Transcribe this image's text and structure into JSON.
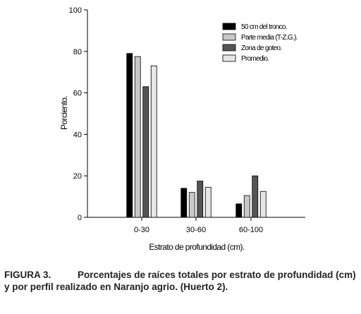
{
  "chart_data": {
    "type": "bar",
    "categories": [
      "0-30",
      "30-60",
      "60-100"
    ],
    "series": [
      {
        "name": "50 cm del tronco.",
        "color": "#000000",
        "values": [
          79,
          14,
          6.5
        ]
      },
      {
        "name": "Parte media (T-Z.G.).",
        "color": "#c8c8c8",
        "values": [
          77.5,
          12,
          10.5
        ]
      },
      {
        "name": "Zona de goteo.",
        "color": "#555555",
        "values": [
          63,
          17.5,
          20
        ]
      },
      {
        "name": "Promedio.",
        "color": "#e6e6e6",
        "values": [
          73,
          14.5,
          12.5
        ]
      }
    ],
    "xlabel": "Estrato de profundidad (cm).",
    "ylabel": "Porciento.",
    "ylim": [
      0,
      100
    ],
    "yticks": [
      0,
      20,
      40,
      60,
      80,
      100
    ],
    "grid": false,
    "legend_position": "top-right"
  },
  "caption": {
    "label": "FIGURA 3.",
    "text": "Porcentajes de raíces totales por estrato de profundidad (cm) y por perfil realizado en Naranjo agrio. (Huerto 2)."
  }
}
